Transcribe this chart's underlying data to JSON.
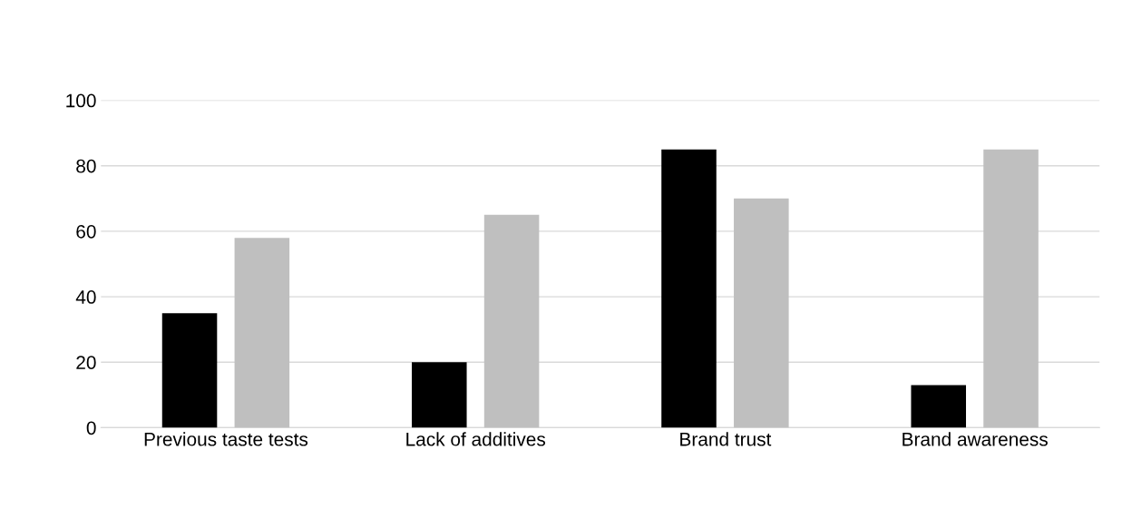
{
  "chart_data": {
    "type": "bar",
    "categories": [
      "Previous taste tests",
      "Lack of additives",
      "Brand trust",
      "Brand awareness"
    ],
    "series": [
      {
        "color": "#000000",
        "values": [
          35,
          20,
          85,
          13
        ]
      },
      {
        "color": "#bfbfbf",
        "values": [
          58,
          65,
          70,
          85
        ]
      }
    ],
    "ylim": [
      0,
      100
    ],
    "yticks": [
      0,
      20,
      40,
      60,
      80,
      100
    ],
    "grid": "y"
  }
}
